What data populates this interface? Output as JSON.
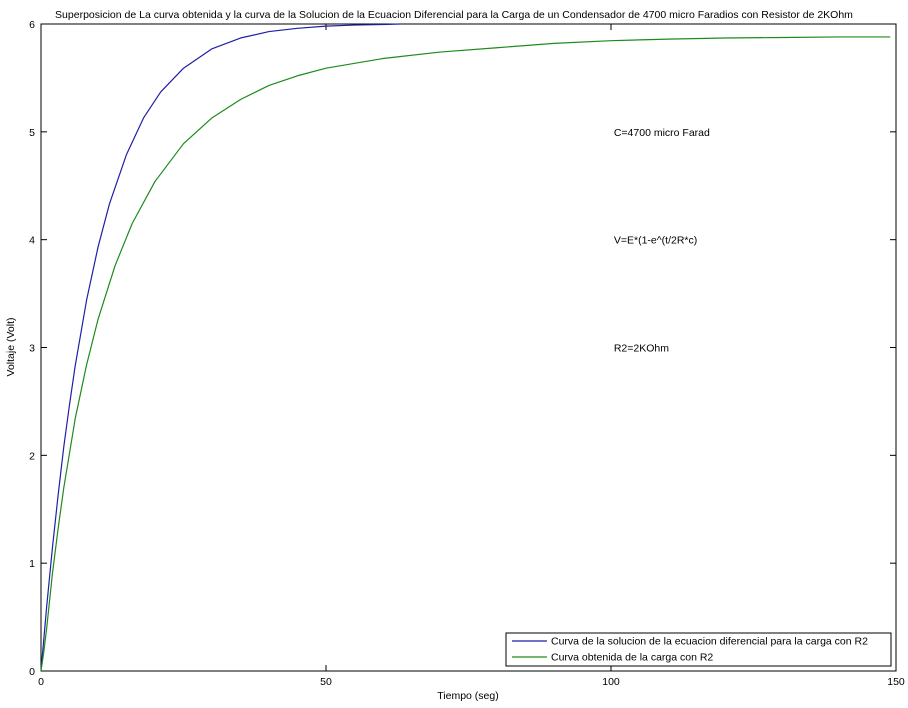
{
  "chart_data": {
    "type": "line",
    "title": "Superposicion de La curva obtenida y la curva de la Solucion de la Ecuacion Diferencial para la Carga de un Condensador de 4700 micro Faradios con Resistor de 2KOhm",
    "xlabel": "Tiempo (seg)",
    "ylabel": "Voltaje (Volt)",
    "xlim": [
      0,
      150
    ],
    "ylim": [
      0,
      6
    ],
    "xticks": [
      0,
      50,
      100,
      150
    ],
    "yticks": [
      0,
      1,
      2,
      3,
      4,
      5,
      6
    ],
    "grid": false,
    "legend_position": "bottom-right",
    "annotations": [
      {
        "text": "C=4700 micro Farad",
        "x": 100.5,
        "y": 5.0
      },
      {
        "text": "V=E*(1-e^(t/2R*c)",
        "x": 100.5,
        "y": 4.0
      },
      {
        "text": "R2=2KOhm",
        "x": 100.5,
        "y": 3.0
      }
    ],
    "series": [
      {
        "name": "Curva de la solucion de la ecuacion diferencial para la carga con R2",
        "color": "#1f1fa8",
        "x": [
          0,
          1,
          2,
          3,
          4,
          5,
          6,
          8,
          10,
          12,
          15,
          18,
          21,
          25,
          30,
          35,
          40,
          45,
          50,
          55,
          60,
          63
        ],
        "y": [
          0,
          0.6,
          1.14,
          1.63,
          2.08,
          2.47,
          2.83,
          3.44,
          3.93,
          4.33,
          4.79,
          5.13,
          5.37,
          5.59,
          5.77,
          5.87,
          5.93,
          5.96,
          5.98,
          5.99,
          5.995,
          6.0
        ]
      },
      {
        "name": "Curva obtenida de la carga con R2",
        "color": "#1d8a1d",
        "x": [
          0,
          0.5,
          1,
          2,
          3,
          4,
          6,
          8,
          10,
          13,
          16,
          20,
          25,
          30,
          35,
          40,
          45,
          50,
          60,
          70,
          80,
          90,
          100,
          110,
          120,
          130,
          140,
          149
        ],
        "y": [
          0,
          0.18,
          0.4,
          0.9,
          1.32,
          1.7,
          2.34,
          2.84,
          3.26,
          3.76,
          4.15,
          4.54,
          4.89,
          5.13,
          5.3,
          5.43,
          5.52,
          5.59,
          5.68,
          5.74,
          5.78,
          5.82,
          5.845,
          5.86,
          5.87,
          5.875,
          5.88,
          5.88
        ]
      }
    ]
  }
}
